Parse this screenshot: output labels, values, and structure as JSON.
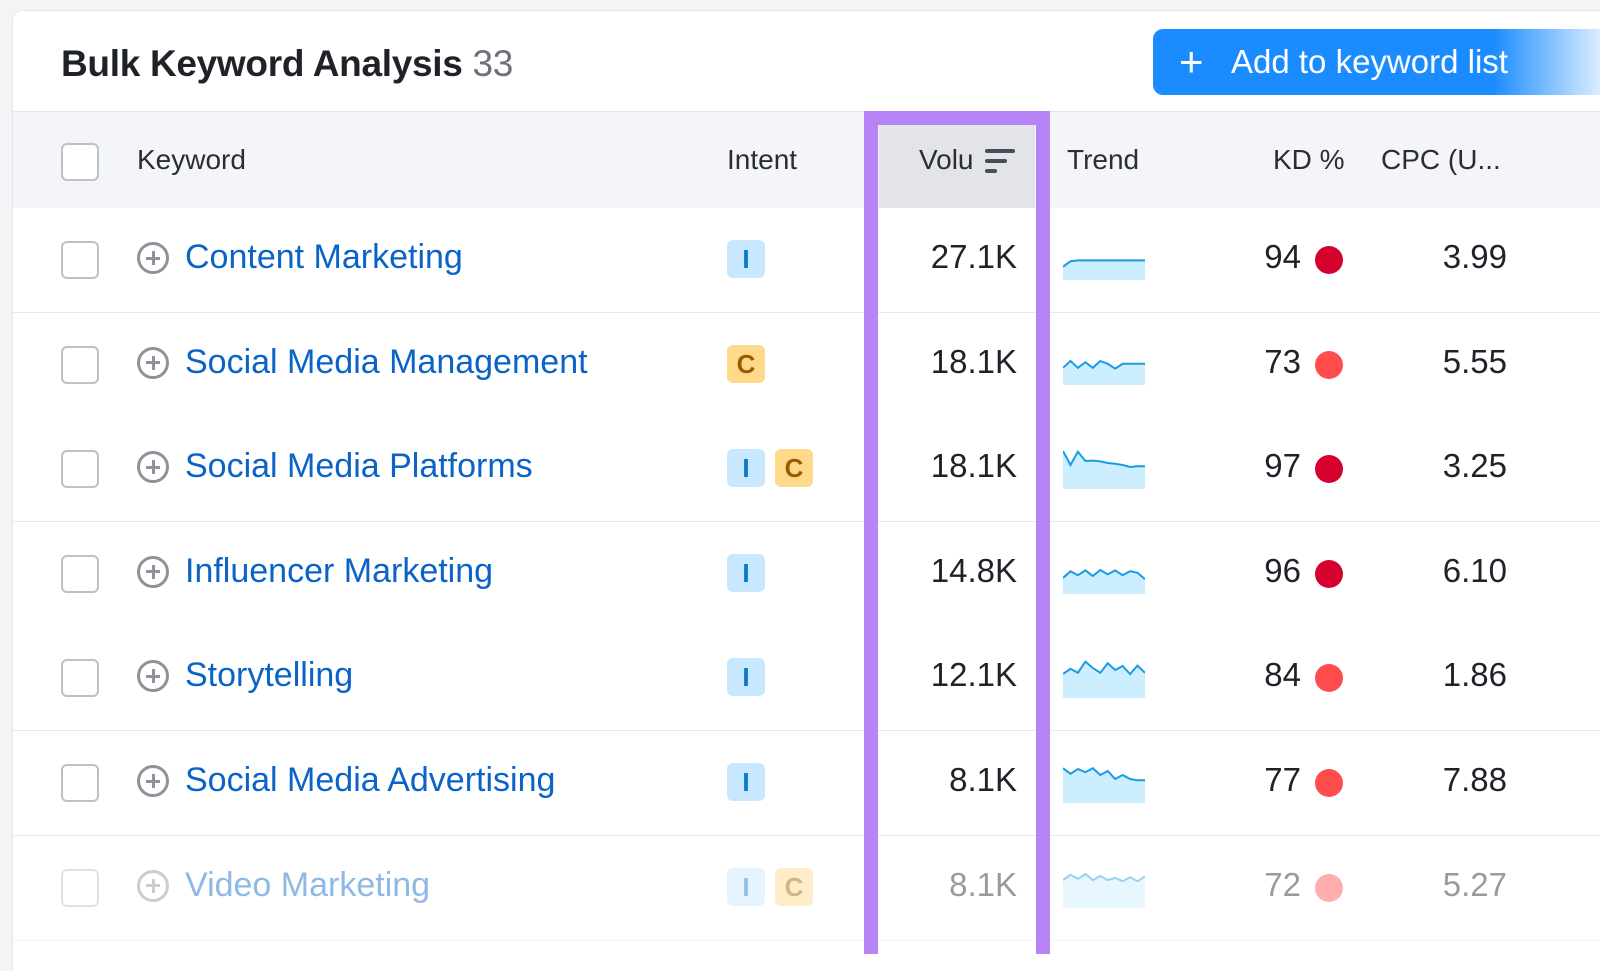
{
  "header": {
    "title": "Bulk Keyword Analysis",
    "count": "33",
    "add_button": {
      "icon": "plus-icon",
      "label": "Add to keyword list"
    }
  },
  "columns": {
    "keyword": "Keyword",
    "intent": "Intent",
    "volume": "Volu",
    "trend": "Trend",
    "kd": "KD %",
    "cpc": "CPC (U..."
  },
  "colors": {
    "accent": "#1a8cff",
    "highlight": "#b684f7",
    "link": "#0a63c7",
    "intent_informational_bg": "#c7e8ff",
    "intent_commercial_bg": "#ffd98a",
    "kd_very_hard": "#d6002f",
    "kd_hard": "#ff4d4d",
    "trend_line": "#1a9be6",
    "trend_fill": "#cdeefe"
  },
  "rows": [
    {
      "keyword": "Content Marketing",
      "intents": [
        "I"
      ],
      "volume": "27.1K",
      "trend": [
        0.82,
        0.68,
        0.66,
        0.66,
        0.66,
        0.66,
        0.66,
        0.66,
        0.66,
        0.66,
        0.66,
        0.66
      ],
      "kd": "94",
      "kd_level": "very-hard",
      "cpc": "3.99"
    },
    {
      "keyword": "Social Media Management",
      "intents": [
        "C"
      ],
      "volume": "18.1K",
      "trend": [
        0.72,
        0.55,
        0.72,
        0.58,
        0.72,
        0.55,
        0.62,
        0.74,
        0.62,
        0.62,
        0.62,
        0.62
      ],
      "kd": "73",
      "kd_level": "hard",
      "cpc": "5.55"
    },
    {
      "keyword": "Social Media Platforms",
      "intents": [
        "I",
        "C"
      ],
      "volume": "18.1K",
      "trend": [
        0.2,
        0.55,
        0.22,
        0.45,
        0.44,
        0.46,
        0.5,
        0.52,
        0.55,
        0.6,
        0.58,
        0.58
      ],
      "kd": "97",
      "kd_level": "very-hard",
      "cpc": "3.25"
    },
    {
      "keyword": "Influencer Marketing",
      "intents": [
        "I"
      ],
      "volume": "14.8K",
      "trend": [
        0.75,
        0.58,
        0.68,
        0.56,
        0.7,
        0.55,
        0.66,
        0.56,
        0.68,
        0.58,
        0.62,
        0.78
      ],
      "kd": "96",
      "kd_level": "very-hard",
      "cpc": "6.10"
    },
    {
      "keyword": "Storytelling",
      "intents": [
        "I"
      ],
      "volume": "12.1K",
      "trend": [
        0.55,
        0.42,
        0.52,
        0.24,
        0.4,
        0.52,
        0.28,
        0.45,
        0.35,
        0.55,
        0.34,
        0.52
      ],
      "kd": "84",
      "kd_level": "hard",
      "cpc": "1.86"
    },
    {
      "keyword": "Social Media Advertising",
      "intents": [
        "I"
      ],
      "volume": "8.1K",
      "trend": [
        0.28,
        0.42,
        0.3,
        0.38,
        0.28,
        0.45,
        0.35,
        0.55,
        0.45,
        0.55,
        0.58,
        0.58
      ],
      "kd": "77",
      "kd_level": "hard",
      "cpc": "7.88"
    },
    {
      "keyword": "Video Marketing",
      "intents": [
        "I",
        "C"
      ],
      "volume": "8.1K",
      "trend": [
        0.45,
        0.32,
        0.42,
        0.3,
        0.45,
        0.35,
        0.45,
        0.4,
        0.48,
        0.38,
        0.48,
        0.36
      ],
      "kd": "72",
      "kd_level": "hard",
      "cpc": "5.27"
    }
  ]
}
